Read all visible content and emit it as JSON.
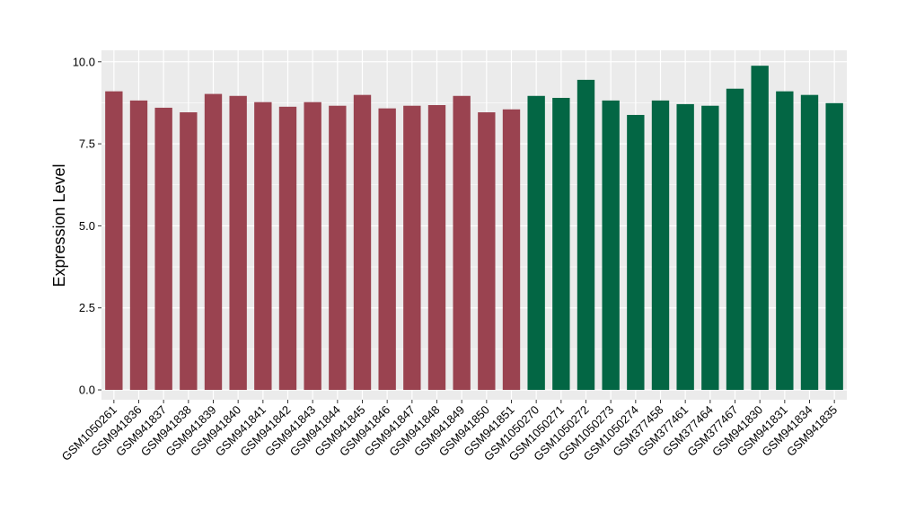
{
  "chart_data": {
    "type": "bar",
    "ylabel": "Expression Level",
    "xlabel": "",
    "ylim": [
      -0.3,
      10.35
    ],
    "y_ticks": [
      {
        "value": 0,
        "label": "0.0"
      },
      {
        "value": 2.5,
        "label": "2.5"
      },
      {
        "value": 5,
        "label": "5.0"
      },
      {
        "value": 7.5,
        "label": "7.5"
      },
      {
        "value": 10,
        "label": "10.0"
      }
    ],
    "grid": true,
    "panel_background": "#EBEBEB",
    "grid_color": "#FFFFFF",
    "group_colors": [
      "#9A4350",
      "#036644"
    ],
    "categories": [
      "GSM1050261",
      "GSM941836",
      "GSM941837",
      "GSM941838",
      "GSM941839",
      "GSM941840",
      "GSM941841",
      "GSM941842",
      "GSM941843",
      "GSM941844",
      "GSM941845",
      "GSM941846",
      "GSM941847",
      "GSM941848",
      "GSM941849",
      "GSM941850",
      "GSM941851",
      "GSM1050270",
      "GSM1050271",
      "GSM1050272",
      "GSM1050273",
      "GSM1050274",
      "GSM377458",
      "GSM377461",
      "GSM377464",
      "GSM377467",
      "GSM941830",
      "GSM941831",
      "GSM941834",
      "GSM941835"
    ],
    "values": [
      9.1,
      8.82,
      8.6,
      8.46,
      9.02,
      8.96,
      8.77,
      8.63,
      8.77,
      8.66,
      8.99,
      8.58,
      8.66,
      8.68,
      8.96,
      8.46,
      8.55,
      8.96,
      8.9,
      9.45,
      8.82,
      8.38,
      8.82,
      8.71,
      8.66,
      9.18,
      9.88,
      9.1,
      8.99,
      8.74
    ],
    "groups": [
      0,
      0,
      0,
      0,
      0,
      0,
      0,
      0,
      0,
      0,
      0,
      0,
      0,
      0,
      0,
      0,
      0,
      1,
      1,
      1,
      1,
      1,
      1,
      1,
      1,
      1,
      1,
      1,
      1,
      1
    ]
  }
}
